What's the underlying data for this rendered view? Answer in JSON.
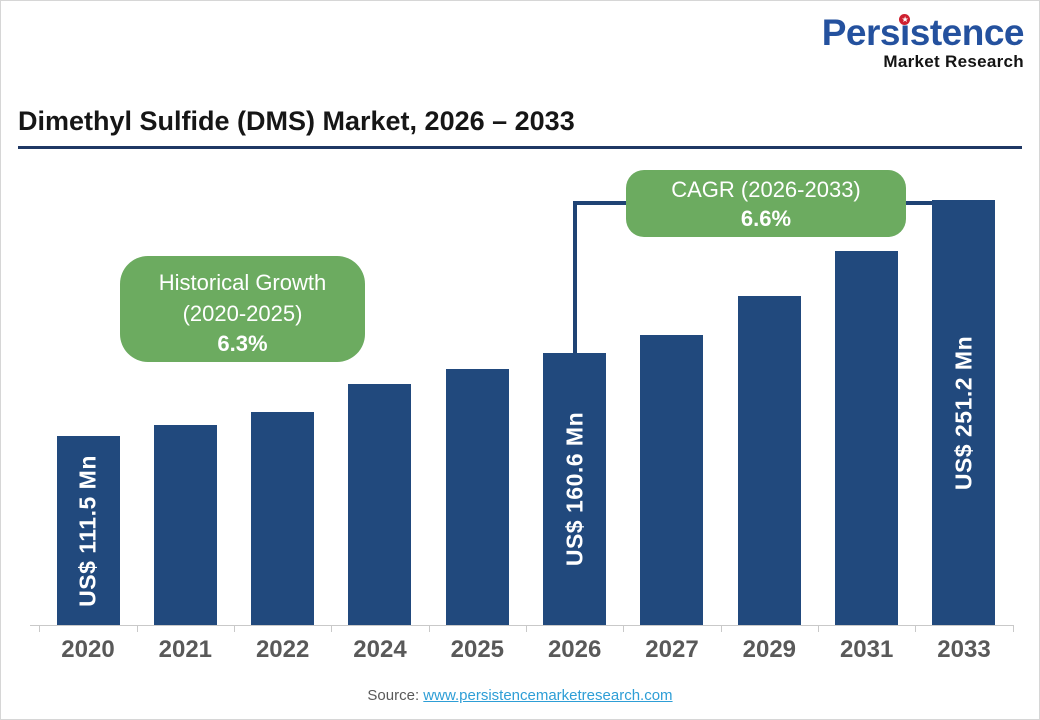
{
  "logo": {
    "brand": "Persistence",
    "sub": "Market Research"
  },
  "header": {
    "title": "Dimethyl Sulfide (DMS) Market, 2026 – 2033"
  },
  "annotations": {
    "historical": {
      "title": "Historical Growth",
      "range": "(2020-2025)",
      "value": "6.3%"
    },
    "cagr": {
      "title": "CAGR (2026-2033)",
      "value": "6.6%",
      "connector_from": "2026",
      "connector_to": "2033"
    }
  },
  "source": {
    "label": "Source:",
    "link_text": "www.persistencemarketresearch.com"
  },
  "colors": {
    "bar_navy": "#21497D",
    "connector_navy": "#1F4374",
    "title_rule_navy": "#1F3864",
    "accent_green": "#6CAB60",
    "axis_text_gray": "#595959",
    "link_blue": "#2E9ED6",
    "logo_blue": "#24519E",
    "logo_star_red": "#CE2030",
    "bar_label_text": "#FFFFFF"
  },
  "chart_data": {
    "type": "bar",
    "title": "Dimethyl Sulfide (DMS) Market, 2026 – 2033",
    "unit": "US$ Mn",
    "categories": [
      "2020",
      "2021",
      "2022",
      "2024",
      "2025",
      "2026",
      "2027",
      "2029",
      "2031",
      "2033"
    ],
    "values": [
      111.5,
      118.5,
      126.0,
      142.4,
      151.4,
      160.6,
      171.2,
      194.6,
      221.1,
      251.2
    ],
    "bar_labels": [
      "US$ 111.5 Mn",
      null,
      null,
      null,
      null,
      "US$ 160.6 Mn",
      null,
      null,
      null,
      "US$ 251.2 Mn"
    ],
    "xlabel": "",
    "ylabel": "",
    "ylim": [
      0,
      260
    ],
    "grid": false,
    "legend": false
  }
}
